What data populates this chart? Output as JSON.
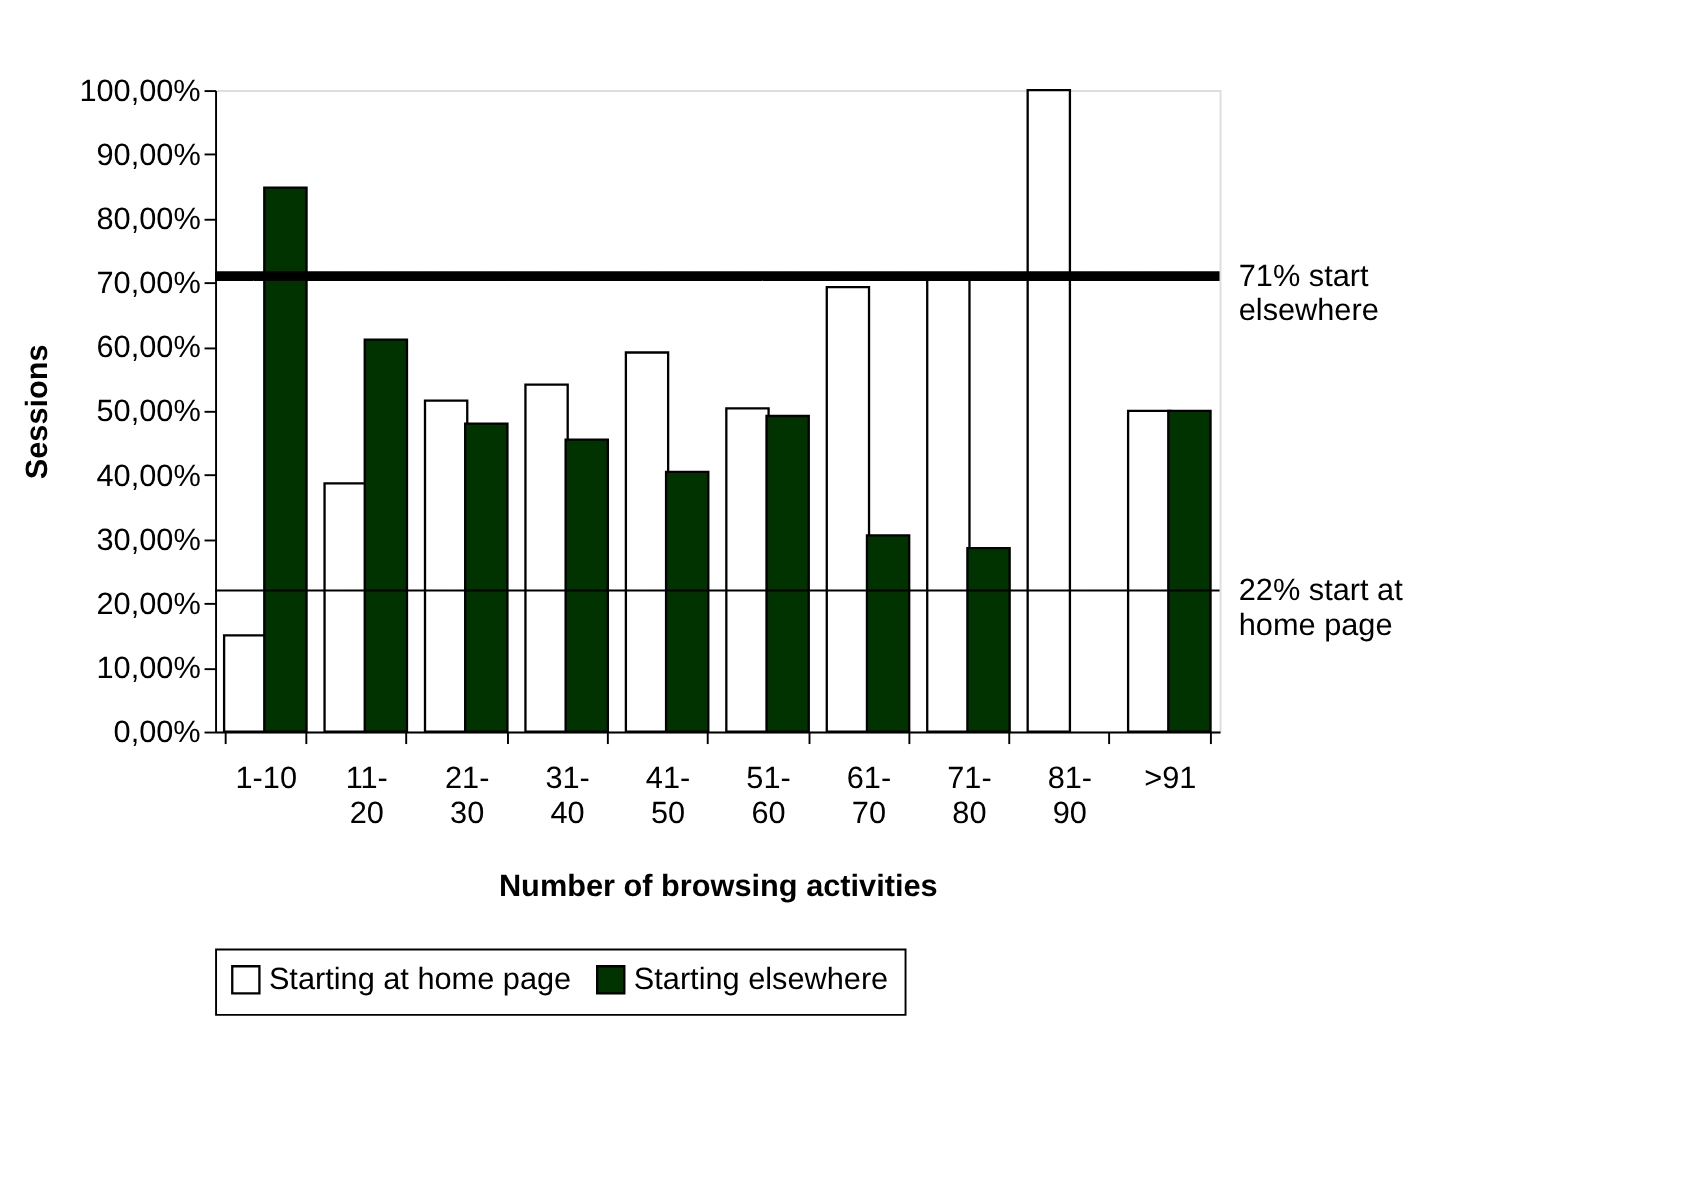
{
  "chart_data": {
    "type": "bar",
    "xlabel": "Number of browsing activities",
    "ylabel": "Sessions",
    "categories": [
      "1-10",
      "11-20",
      "21-30",
      "31-40",
      "41-50",
      "51-60",
      "61-70",
      "71-80",
      "81-90",
      ">91"
    ],
    "series": [
      {
        "name": "Starting at home page",
        "color": "#ffffff",
        "values": [
          15,
          38.7,
          51.6,
          54.1,
          59.1,
          50.4,
          69.3,
          71,
          100,
          50
        ]
      },
      {
        "name": "Starting elsewhere",
        "color": "#003300",
        "values": [
          84.8,
          61.1,
          48,
          45.5,
          40.5,
          49.2,
          30.6,
          28.6,
          null,
          50
        ]
      }
    ],
    "ylim": [
      0,
      100
    ],
    "yticks": [
      {
        "value": 0,
        "label": "0,00%"
      },
      {
        "value": 10,
        "label": "10,00%"
      },
      {
        "value": 20,
        "label": "20,00%"
      },
      {
        "value": 30,
        "label": "30,00%"
      },
      {
        "value": 40,
        "label": "40,00%"
      },
      {
        "value": 50,
        "label": "50,00%"
      },
      {
        "value": 60,
        "label": "60,00%"
      },
      {
        "value": 70,
        "label": "70,00%"
      },
      {
        "value": 80,
        "label": "80,00%"
      },
      {
        "value": 90,
        "label": "90,00%"
      },
      {
        "value": 100,
        "label": "100,00%"
      }
    ],
    "ref_lines": [
      {
        "axis": "y",
        "value": 71,
        "label": "71% start elsewhere",
        "color": "#000000"
      },
      {
        "axis": "y",
        "value": 22,
        "label": "22% start at home page",
        "color": "#000000"
      }
    ],
    "grid": false,
    "legend": "bottom"
  }
}
